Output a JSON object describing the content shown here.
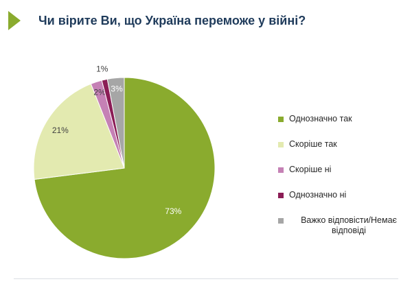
{
  "header": {
    "title": "Чи вірите Ви, що Україна переможе у війні?"
  },
  "chart_data": {
    "type": "pie",
    "title": "Чи вірите Ви, що Україна переможе у війні?",
    "legend_position": "right",
    "slices": [
      {
        "label": "Однозначно так",
        "value": 73,
        "value_label": "73%",
        "color": "#8aab2e"
      },
      {
        "label": "Скоріше так",
        "value": 21,
        "value_label": "21%",
        "color": "#e3eab0"
      },
      {
        "label": "Скоріше ні",
        "value": 2,
        "value_label": "2%",
        "color": "#c581b5"
      },
      {
        "label": "Однозначно ні",
        "value": 1,
        "value_label": "1%",
        "color": "#8b1d56"
      },
      {
        "label": "Важко відповісти/Немає відповіді",
        "value": 3,
        "value_label": "3%",
        "color": "#a6a6a6"
      }
    ]
  }
}
